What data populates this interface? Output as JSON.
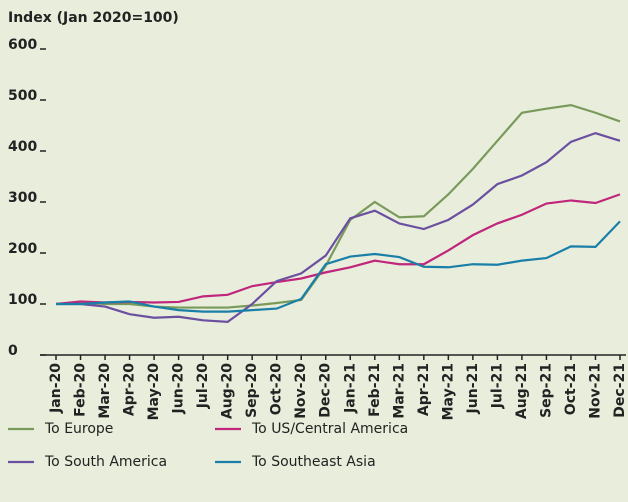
{
  "chart_data": {
    "type": "line",
    "title": "Index (Jan 2020=100)",
    "categories": [
      "Jan-20",
      "Feb-20",
      "Mar-20",
      "Apr-20",
      "May-20",
      "Jun-20",
      "Jul-20",
      "Aug-20",
      "Sep-20",
      "Oct-20",
      "Nov-20",
      "Dec-20",
      "Jan-21",
      "Feb-21",
      "Mar-21",
      "Apr-21",
      "May-21",
      "Jun-21",
      "Jul-21",
      "Aug-21",
      "Sep-21",
      "Oct-21",
      "Nov-21",
      "Dec-21"
    ],
    "series": [
      {
        "name": "To Europe",
        "color": "#7a9a5c",
        "values": [
          100,
          103,
          100,
          100,
          95,
          93,
          93,
          93,
          97,
          102,
          108,
          175,
          265,
          300,
          270,
          272,
          315,
          365,
          420,
          475,
          483,
          490,
          475,
          458
        ]
      },
      {
        "name": "To US/Central America",
        "color": "#c0267c",
        "values": [
          100,
          105,
          103,
          104,
          103,
          104,
          115,
          118,
          135,
          143,
          150,
          162,
          172,
          185,
          178,
          178,
          205,
          235,
          258,
          275,
          297,
          303,
          298,
          315
        ]
      },
      {
        "name": "To South America",
        "color": "#6b4fa0",
        "values": [
          100,
          100,
          95,
          80,
          73,
          75,
          68,
          65,
          100,
          145,
          160,
          195,
          268,
          283,
          258,
          247,
          265,
          295,
          335,
          352,
          378,
          418,
          435,
          420
        ]
      },
      {
        "name": "To Southeast Asia",
        "color": "#1a7fa8",
        "values": [
          100,
          100,
          103,
          105,
          95,
          88,
          85,
          85,
          88,
          91,
          110,
          178,
          193,
          198,
          192,
          173,
          172,
          178,
          177,
          185,
          190,
          213,
          212,
          262
        ]
      }
    ],
    "ylim": [
      0,
      600
    ],
    "yticks": [
      0,
      100,
      200,
      300,
      400,
      500,
      600
    ]
  }
}
